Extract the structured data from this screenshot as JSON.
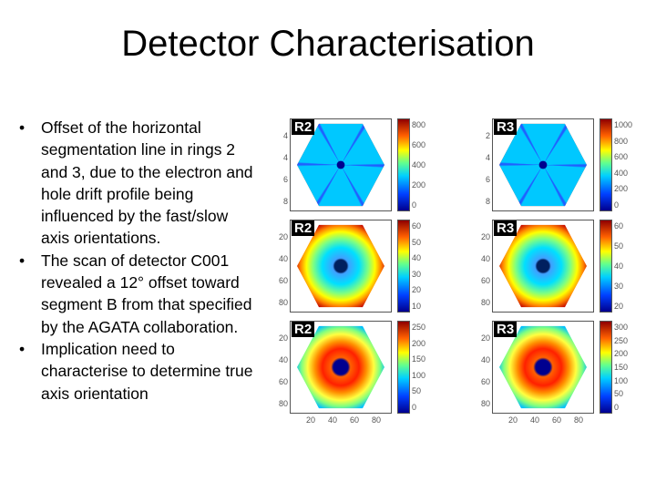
{
  "slide": {
    "title": "Detector Characterisation",
    "bullets": [
      "Offset of the horizontal segmentation line in rings 2 and 3, due to the electron and hole drift profile being influenced by the fast/slow axis orientations.",
      "The scan of detector C001 revealed a 12° offset toward segment B from that specified by the AGATA collaboration.",
      "Implication need to characterise to determine true axis orientation"
    ],
    "bullet_symbol": "•"
  },
  "figure": {
    "rows": [
      {
        "cells": [
          {
            "label": "R2",
            "pattern": "star",
            "yticks": [
              "4",
              "4",
              "6",
              "8"
            ],
            "cticks": [
              "800",
              "600",
              "400",
              "200",
              "0"
            ]
          },
          {
            "label": "R3",
            "pattern": "star",
            "yticks": [
              "2",
              "4",
              "6",
              "8"
            ],
            "cticks": [
              "1000",
              "800",
              "600",
              "400",
              "200",
              "0"
            ]
          }
        ]
      },
      {
        "cells": [
          {
            "label": "R2",
            "pattern": "ring",
            "yticks": [
              "20",
              "40",
              "60",
              "80"
            ],
            "cticks": [
              "60",
              "50",
              "40",
              "30",
              "20",
              "10"
            ]
          },
          {
            "label": "R3",
            "pattern": "ring",
            "yticks": [
              "20",
              "40",
              "60",
              "80"
            ],
            "cticks": [
              "60",
              "50",
              "40",
              "30",
              "20"
            ]
          }
        ]
      },
      {
        "cells": [
          {
            "label": "R2",
            "pattern": "hot",
            "yticks": [
              "20",
              "40",
              "60",
              "80"
            ],
            "cticks": [
              "250",
              "200",
              "150",
              "100",
              "50",
              "0"
            ]
          },
          {
            "label": "R3",
            "pattern": "hot",
            "yticks": [
              "20",
              "40",
              "60",
              "80"
            ],
            "cticks": [
              "300",
              "250",
              "200",
              "150",
              "100",
              "50",
              "0"
            ]
          }
        ]
      }
    ],
    "xticks": [
      "20",
      "40",
      "60",
      "80"
    ],
    "colors": {
      "outer": "#00008f",
      "star_bg": "#00c8ff",
      "star_edge": "#ff3000",
      "ring_center": "#00205f",
      "hot_core": "#ff2000"
    }
  }
}
